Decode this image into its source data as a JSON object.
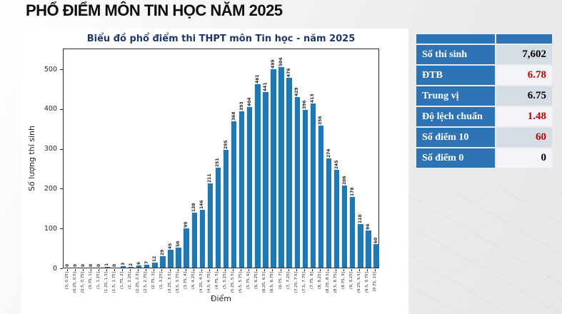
{
  "page": {
    "title": "PHỔ ĐIỂM MÔN TIN HỌC NĂM 2025"
  },
  "chart_data": {
    "type": "bar",
    "title": "Biểu đồ phổ điểm thi THPT môn Tin học - năm 2025",
    "xlabel": "Điểm",
    "ylabel": "Số lượng thí sinh",
    "ylim": [
      0,
      552
    ],
    "yticks": [
      0,
      100,
      200,
      300,
      400,
      500
    ],
    "grid": false,
    "bar_color": "#1f77b4",
    "categories": [
      "[0, 0.25]",
      "(0.25, 0.5]",
      "(0.5, 0.75]",
      "(0.75, 1]",
      "(1, 1.25]",
      "(1.25, 1.5]",
      "(1.5, 1.75]",
      "(1.75, 2]",
      "(2, 2.25]",
      "(2.25, 2.5]",
      "(2.5, 2.75]",
      "(2.75, 3]",
      "(3, 3.25]",
      "(3.25, 3.5]",
      "(3.5, 3.75]",
      "(3.75, 4]",
      "(4, 4.25]",
      "(4.25, 4.5]",
      "(4.5, 4.75]",
      "(4.75, 5]",
      "(5, 5.25]",
      "(5.25, 5.5]",
      "(5.5, 5.75]",
      "(5.75, 6]",
      "(6, 6.25]",
      "(6.25, 6.5]",
      "(6.5, 6.75]",
      "(6.75, 7]",
      "(7, 7.25]",
      "(7.25, 7.5]",
      "(7.5, 7.75]",
      "(7.75, 8]",
      "(8, 8.25]",
      "(8.25, 8.5]",
      "(8.5, 8.75]",
      "(8.75, 9]",
      "(9, 9.25]",
      "(9.25, 9.5]",
      "(9.5, 9.75]",
      "(9.75, 10]"
    ],
    "values": [
      0,
      0,
      0,
      0,
      0,
      1,
      0,
      3,
      2,
      6,
      7,
      12,
      29,
      45,
      50,
      99,
      138,
      146,
      211,
      251,
      295,
      368,
      393,
      404,
      461,
      441,
      499,
      504,
      476,
      429,
      396,
      413,
      356,
      274,
      245,
      206,
      178,
      110,
      94,
      60
    ]
  },
  "stats_table": {
    "header_color": "#2e74b5",
    "rows": [
      {
        "label": "Số thí sinh",
        "value": "7,602",
        "value_color": "#000000"
      },
      {
        "label": "ĐTB",
        "value": "6.78",
        "value_color": "#c00000"
      },
      {
        "label": "Trung vị",
        "value": "6.75",
        "value_color": "#000000"
      },
      {
        "label": "Độ lệch chuẩn",
        "value": "1.48",
        "value_color": "#c00000"
      },
      {
        "label": "Số điểm 10",
        "value": "60",
        "value_color": "#c00000"
      },
      {
        "label": "Số điểm 0",
        "value": "0",
        "value_color": "#000000"
      }
    ]
  }
}
